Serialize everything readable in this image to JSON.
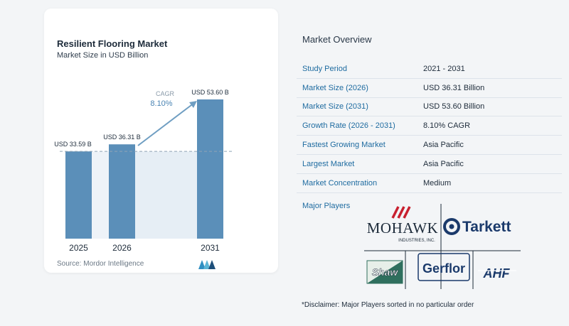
{
  "chart_data": {
    "type": "bar",
    "title": "Resilient Flooring Market",
    "subtitle": "Market Size in USD Billion",
    "categories": [
      "2025",
      "2026",
      "2031"
    ],
    "values": [
      33.59,
      36.31,
      53.6
    ],
    "value_labels": [
      "USD 33.59 B",
      "USD 36.31 B",
      "USD 53.60 B"
    ],
    "cagr_label": "CAGR",
    "cagr_value": "8.10%",
    "bar_color": "#5b8fb9",
    "shaded_color": "#e6eef5",
    "ylim": [
      0,
      53.6
    ],
    "grid": false,
    "source": "Source: Mordor Intelligence"
  },
  "overview": {
    "title": "Market Overview",
    "rows": [
      {
        "label": "Study Period",
        "value": "2021 - 2031"
      },
      {
        "label": "Market Size (2026)",
        "value": "USD 36.31 Billion"
      },
      {
        "label": "Market Size (2031)",
        "value": "USD 53.60 Billion"
      },
      {
        "label": "Growth Rate (2026 - 2031)",
        "value": "8.10% CAGR"
      },
      {
        "label": "Fastest Growing Market",
        "value": "Asia Pacific"
      },
      {
        "label": "Largest Market",
        "value": "Asia Pacific"
      },
      {
        "label": "Market Concentration",
        "value": "Medium"
      }
    ],
    "players_label": "Major Players",
    "players": [
      {
        "name": "MOHAWK",
        "sub": "INDUSTRIES, INC."
      },
      {
        "name": "Tarkett"
      },
      {
        "name": "Shaw"
      },
      {
        "name": "Gerflor"
      },
      {
        "name": "AHF"
      }
    ],
    "disclaimer": "*Disclaimer: Major Players sorted in no particular order"
  },
  "colors": {
    "label_blue": "#1e6ba0",
    "mohawk_red": "#c8202f",
    "logo_navy": "#1b3a6b",
    "shaw_green": "#2f6f5e"
  }
}
